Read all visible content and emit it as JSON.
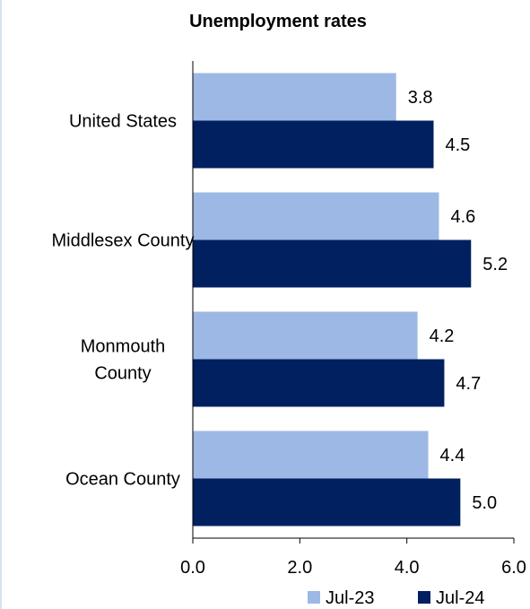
{
  "chart_data": {
    "type": "bar",
    "orientation": "horizontal",
    "title": "Unemployment rates",
    "xlabel": "",
    "ylabel": "",
    "categories": [
      [
        "United States"
      ],
      [
        "Middlesex County"
      ],
      [
        "Monmouth",
        "County"
      ],
      [
        "Ocean County"
      ]
    ],
    "series": [
      {
        "name": "Jul-23",
        "color": "#9db8e4",
        "values": [
          3.8,
          4.6,
          4.2,
          4.4
        ],
        "labels": [
          "3.8",
          "4.6",
          "4.2",
          "4.4"
        ]
      },
      {
        "name": "Jul-24",
        "color": "#002060",
        "values": [
          4.5,
          5.2,
          4.7,
          5.0
        ],
        "labels": [
          "4.5",
          "5.2",
          "4.7",
          "5.0"
        ]
      }
    ],
    "xlim": [
      0,
      6
    ],
    "xticks": [
      "0.0",
      "2.0",
      "4.0",
      "6.0"
    ],
    "grid": false,
    "legend_position": "bottom"
  }
}
